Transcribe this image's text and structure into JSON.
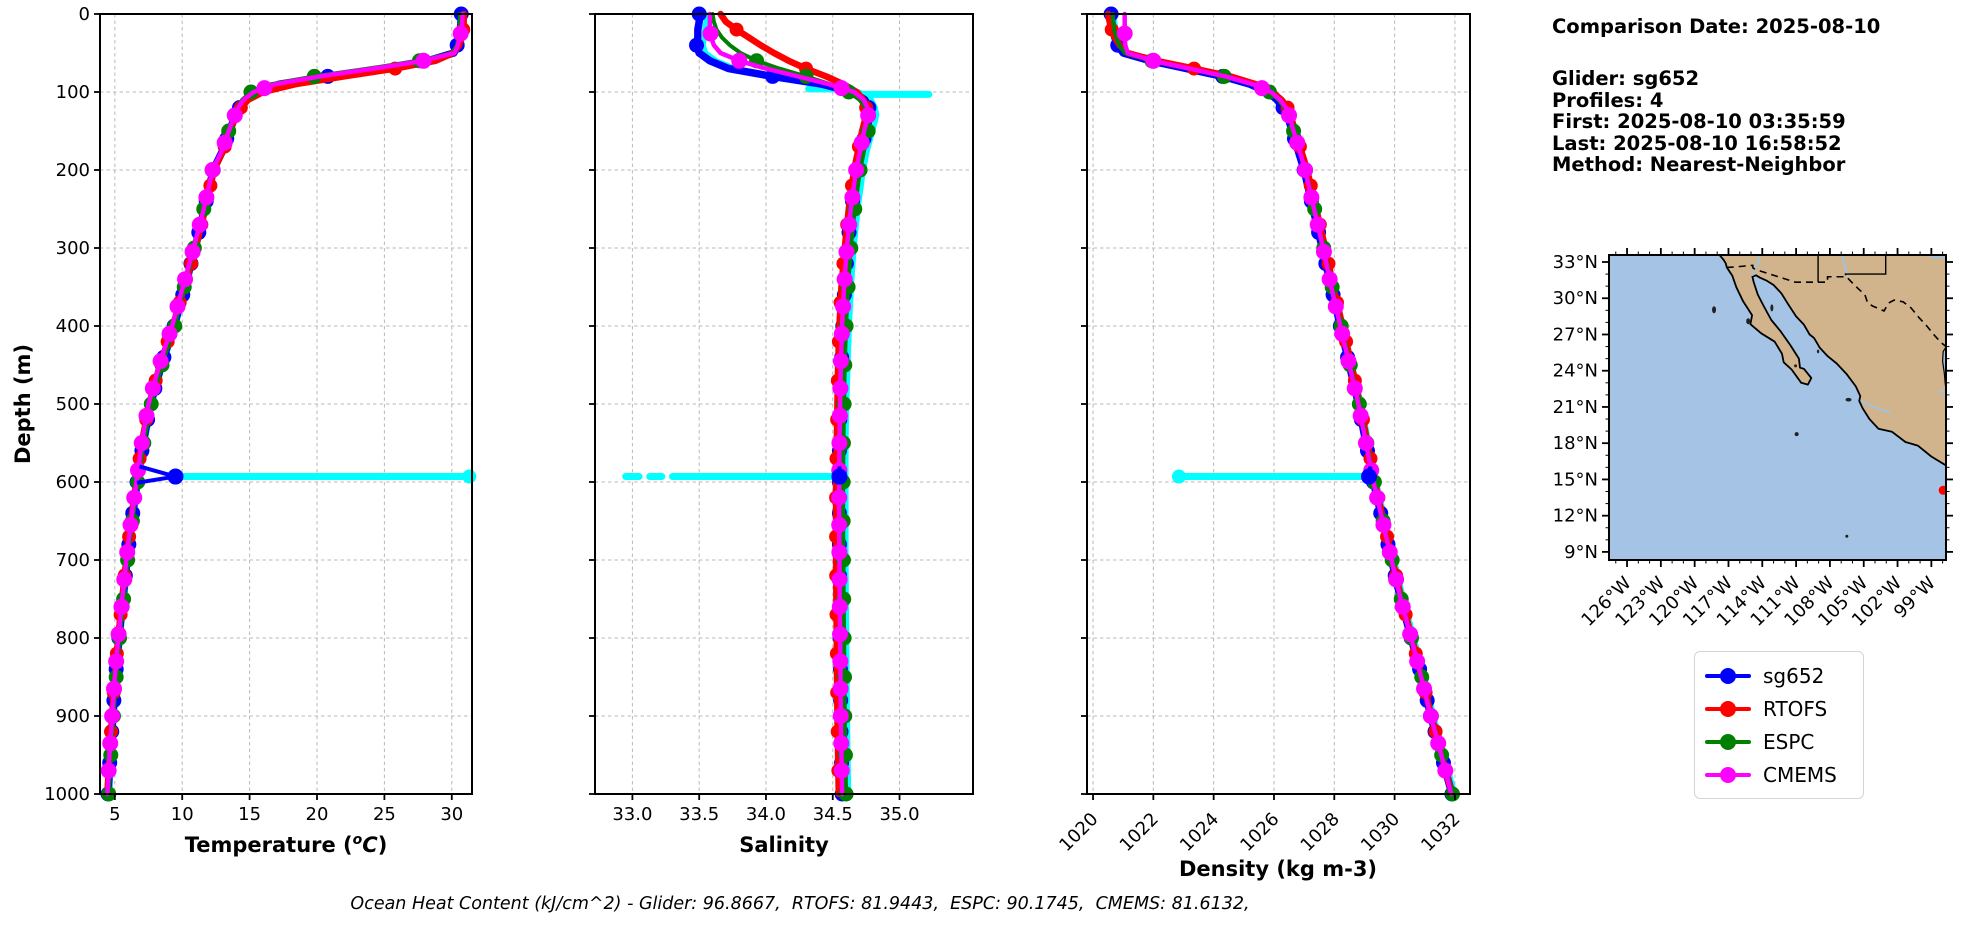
{
  "ylabel": "Depth (m)",
  "info": {
    "comparison_date": "Comparison Date: 2025-08-10",
    "lines": [
      "Glider: sg652",
      "Profiles: 4",
      "First: 2025-08-10 03:35:59",
      "Last: 2025-08-10 16:58:52",
      "Method: Nearest-Neighbor"
    ]
  },
  "caption": "Ocean Heat Content (kJ/cm^2) - Glider: 96.8667,  RTOFS: 81.9443,  ESPC: 90.1745,  CMEMS: 81.6132,",
  "legend": {
    "entries": [
      {
        "label": "sg652",
        "color": "#0000ff"
      },
      {
        "label": "RTOFS",
        "color": "#ff0000"
      },
      {
        "label": "ESPC",
        "color": "#008000"
      },
      {
        "label": "CMEMS",
        "color": "#ff00ff"
      }
    ]
  },
  "map": {
    "lat_labels": [
      "33°N",
      "30°N",
      "27°N",
      "24°N",
      "21°N",
      "18°N",
      "15°N",
      "12°N",
      "9°N"
    ],
    "lon_labels": [
      "126°W",
      "123°W",
      "120°W",
      "117°W",
      "114°W",
      "111°W",
      "108°W",
      "105°W",
      "102°W",
      "99°W"
    ],
    "ocean_color": "#a5c3e4",
    "land_color": "#d2b48c",
    "river_color": "#9dc3e6",
    "marker_color": "#ff0000",
    "marker_lonlat": [
      -97.95,
      14.1
    ]
  },
  "chart_data": [
    {
      "type": "line",
      "title": "",
      "xlabel": "Temperature (°C)",
      "xlabel_parts": [
        {
          "t": "Temperature ("
        },
        {
          "t": "o",
          "sup": true,
          "i": true
        },
        {
          "t": "C",
          "i": true
        },
        {
          "t": ")"
        }
      ],
      "ylabel": "Depth (m)",
      "xlim": [
        3.9,
        31.5
      ],
      "ylim": [
        0,
        1000
      ],
      "xticks": [
        5,
        10,
        15,
        20,
        25,
        30
      ],
      "xtick_labels": [
        "5",
        "10",
        "15",
        "20",
        "25",
        "30"
      ],
      "yticks": [
        0,
        100,
        200,
        300,
        400,
        500,
        600,
        700,
        800,
        900,
        1000
      ],
      "ytick_labels": [
        "0",
        "100",
        "200",
        "300",
        "400",
        "500",
        "600",
        "700",
        "800",
        "900",
        "1000"
      ],
      "grid": true,
      "depths": [
        0,
        10,
        20,
        30,
        40,
        50,
        60,
        70,
        80,
        90,
        100,
        110,
        120,
        130,
        150,
        175,
        200,
        250,
        300,
        350,
        400,
        450,
        500,
        550,
        600,
        650,
        700,
        750,
        800,
        850,
        900,
        950,
        1000
      ],
      "series": [
        {
          "name": "sg652",
          "color": "#0000ff",
          "values": [
            30.7,
            30.68,
            30.65,
            30.55,
            30.4,
            30.15,
            28.2,
            24.8,
            20.8,
            17.2,
            15.5,
            14.7,
            14.25,
            13.95,
            13.5,
            13.0,
            12.3,
            11.65,
            10.95,
            10.2,
            9.4,
            8.45,
            7.65,
            7.1,
            6.65,
            6.25,
            5.9,
            5.6,
            5.3,
            5.05,
            4.85,
            4.65,
            4.5
          ]
        },
        {
          "name": "RTOFS",
          "color": "#ff0000",
          "values": [
            30.9,
            30.88,
            30.85,
            30.75,
            30.55,
            30.1,
            28.8,
            25.8,
            22.0,
            18.4,
            16.0,
            14.9,
            14.35,
            14.0,
            13.55,
            13.05,
            12.35,
            11.7,
            11.0,
            10.15,
            9.3,
            8.35,
            7.55,
            7.0,
            6.6,
            6.2,
            5.85,
            5.55,
            5.25,
            5.0,
            4.8,
            4.6,
            4.45
          ]
        },
        {
          "name": "ESPC",
          "color": "#008000",
          "values": [
            30.6,
            30.6,
            30.58,
            30.5,
            30.38,
            30.05,
            27.6,
            23.8,
            19.8,
            16.6,
            15.1,
            14.45,
            14.1,
            13.85,
            13.45,
            12.95,
            12.25,
            11.6,
            10.9,
            10.15,
            9.45,
            8.5,
            7.7,
            7.15,
            6.7,
            6.3,
            5.95,
            5.65,
            5.35,
            5.1,
            4.9,
            4.7,
            4.55
          ]
        },
        {
          "name": "CMEMS",
          "color": "#ff00ff",
          "values": [
            30.8,
            30.78,
            30.72,
            30.6,
            30.45,
            30.2,
            27.9,
            24.2,
            20.2,
            16.9,
            15.3,
            14.55,
            14.15,
            13.9,
            13.45,
            12.95,
            12.25,
            11.6,
            10.85,
            10.05,
            9.25,
            8.3,
            7.5,
            7.0,
            6.6,
            6.2,
            5.85,
            5.55,
            5.25,
            5.0,
            4.8,
            4.6,
            4.45
          ]
        }
      ],
      "anomaly": {
        "depth": 593,
        "endpoint": 9.5,
        "segments": [
          [
            9.5,
            31.38
          ]
        ],
        "caps": [
          31.3
        ]
      }
    },
    {
      "type": "line",
      "title": "",
      "xlabel": "Salinity",
      "ylabel": "Depth (m)",
      "xlim": [
        32.72,
        35.55
      ],
      "ylim": [
        0,
        1000
      ],
      "xticks": [
        33.0,
        33.5,
        34.0,
        34.5,
        35.0
      ],
      "xtick_labels": [
        "33.0",
        "33.5",
        "34.0",
        "34.5",
        "35.0"
      ],
      "yticks": [
        0,
        100,
        200,
        300,
        400,
        500,
        600,
        700,
        800,
        900,
        1000
      ],
      "ytick_labels": [],
      "grid": true,
      "depths": [
        0,
        10,
        20,
        30,
        40,
        50,
        60,
        70,
        80,
        90,
        100,
        110,
        120,
        130,
        150,
        175,
        200,
        250,
        300,
        350,
        400,
        450,
        500,
        550,
        600,
        650,
        700,
        750,
        800,
        850,
        900,
        950,
        1000
      ],
      "series": [
        {
          "name": "sg652",
          "color": "#0000ff",
          "values": [
            33.5,
            33.5,
            33.49,
            33.49,
            33.48,
            33.5,
            33.58,
            33.72,
            34.05,
            34.42,
            34.65,
            34.74,
            34.77,
            34.78,
            34.75,
            34.71,
            34.68,
            34.64,
            34.61,
            34.59,
            34.575,
            34.565,
            34.555,
            34.55,
            34.55,
            34.55,
            34.55,
            34.552,
            34.555,
            34.558,
            34.56,
            34.565,
            34.57
          ]
        },
        {
          "name": "RTOFS",
          "color": "#ff0000",
          "values": [
            33.66,
            33.7,
            33.78,
            33.87,
            33.96,
            34.06,
            34.17,
            34.3,
            34.45,
            34.58,
            34.68,
            34.73,
            34.75,
            34.75,
            34.72,
            34.69,
            34.66,
            34.62,
            34.59,
            34.565,
            34.55,
            34.54,
            34.535,
            34.53,
            34.525,
            34.525,
            34.525,
            34.527,
            34.53,
            34.532,
            34.535,
            34.54,
            34.545
          ]
        },
        {
          "name": "ESPC",
          "color": "#008000",
          "values": [
            33.6,
            33.61,
            33.63,
            33.67,
            33.73,
            33.81,
            33.93,
            34.1,
            34.3,
            34.48,
            34.62,
            34.7,
            34.745,
            34.765,
            34.765,
            34.735,
            34.705,
            34.665,
            34.635,
            34.615,
            34.6,
            34.59,
            34.585,
            34.58,
            34.578,
            34.578,
            34.58,
            34.582,
            34.585,
            34.588,
            34.59,
            34.595,
            34.6
          ]
        },
        {
          "name": "CMEMS",
          "color": "#ff00ff",
          "values": [
            33.58,
            33.58,
            33.58,
            33.59,
            33.61,
            33.66,
            33.8,
            34.0,
            34.24,
            34.47,
            34.66,
            34.73,
            34.76,
            34.765,
            34.735,
            34.705,
            34.675,
            34.635,
            34.605,
            34.585,
            34.57,
            34.56,
            34.555,
            34.55,
            34.548,
            34.548,
            34.55,
            34.552,
            34.555,
            34.558,
            34.56,
            34.565,
            34.57
          ]
        }
      ],
      "anomaly": {
        "depth": 593,
        "endpoint": 34.55,
        "segments": [
          [
            32.95,
            33.05
          ],
          [
            33.13,
            33.22
          ],
          [
            33.3,
            34.55
          ]
        ],
        "caps": [],
        "extra": [
          {
            "depth": 103,
            "segments": [
              [
                34.62,
                35.22
              ]
            ]
          },
          {
            "depth": 96,
            "segments": [
              [
                34.32,
                34.6
              ]
            ]
          }
        ]
      }
    },
    {
      "type": "line",
      "title": "",
      "xlabel": "Density (kg m-3)",
      "ylabel": "Depth (m)",
      "xlim": [
        1019.8,
        1032.5
      ],
      "ylim": [
        0,
        1000
      ],
      "xticks": [
        1020,
        1022,
        1024,
        1026,
        1028,
        1030,
        1032
      ],
      "xtick_labels": [
        "1020",
        "1022",
        "1024",
        "1026",
        "1028",
        "1030",
        "1032"
      ],
      "yticks": [
        0,
        100,
        200,
        300,
        400,
        500,
        600,
        700,
        800,
        900,
        1000
      ],
      "ytick_labels": [],
      "grid": true,
      "depths": [
        0,
        10,
        20,
        30,
        40,
        50,
        60,
        70,
        80,
        90,
        100,
        110,
        120,
        130,
        150,
        175,
        200,
        250,
        300,
        350,
        400,
        450,
        500,
        550,
        600,
        650,
        700,
        750,
        800,
        850,
        900,
        950,
        1000
      ],
      "series": [
        {
          "name": "sg652",
          "color": "#0000ff",
          "values": [
            1020.6,
            1020.62,
            1020.66,
            1020.72,
            1020.82,
            1021.0,
            1021.9,
            1023.1,
            1024.3,
            1025.2,
            1025.8,
            1026.1,
            1026.3,
            1026.45,
            1026.6,
            1026.8,
            1027.0,
            1027.3,
            1027.6,
            1027.9,
            1028.2,
            1028.5,
            1028.8,
            1029.05,
            1029.3,
            1029.6,
            1029.9,
            1030.2,
            1030.55,
            1030.9,
            1031.2,
            1031.55,
            1031.9
          ]
        },
        {
          "name": "RTOFS",
          "color": "#ff0000",
          "values": [
            1020.5,
            1020.55,
            1020.62,
            1020.72,
            1020.88,
            1021.15,
            1022.1,
            1023.35,
            1024.55,
            1025.4,
            1025.95,
            1026.25,
            1026.45,
            1026.55,
            1026.7,
            1026.9,
            1027.1,
            1027.4,
            1027.7,
            1027.97,
            1028.27,
            1028.57,
            1028.85,
            1029.1,
            1029.35,
            1029.63,
            1029.93,
            1030.23,
            1030.57,
            1030.9,
            1031.22,
            1031.56,
            1031.9
          ]
        },
        {
          "name": "ESPC",
          "color": "#008000",
          "values": [
            1020.65,
            1020.67,
            1020.7,
            1020.77,
            1020.87,
            1021.05,
            1021.95,
            1023.15,
            1024.35,
            1025.25,
            1025.85,
            1026.15,
            1026.35,
            1026.5,
            1026.65,
            1026.85,
            1027.05,
            1027.35,
            1027.65,
            1027.93,
            1028.23,
            1028.53,
            1028.83,
            1029.08,
            1029.33,
            1029.62,
            1029.92,
            1030.22,
            1030.56,
            1030.9,
            1031.22,
            1031.56,
            1031.92
          ]
        },
        {
          "name": "CMEMS",
          "color": "#ff00ff",
          "values": [
            1021.05,
            1021.05,
            1021.05,
            1021.05,
            1021.07,
            1021.15,
            1022.0,
            1023.2,
            1024.4,
            1025.3,
            1025.9,
            1026.2,
            1026.4,
            1026.5,
            1026.65,
            1026.85,
            1027.03,
            1027.33,
            1027.63,
            1027.9,
            1028.2,
            1028.5,
            1028.8,
            1029.05,
            1029.3,
            1029.6,
            1029.9,
            1030.2,
            1030.55,
            1030.88,
            1031.2,
            1031.55,
            1031.88
          ]
        }
      ],
      "anomaly": {
        "depth": 593,
        "endpoint": 1029.15,
        "segments": [
          [
            1022.8,
            1029.15
          ]
        ],
        "caps": [
          1022.85
        ]
      }
    }
  ]
}
